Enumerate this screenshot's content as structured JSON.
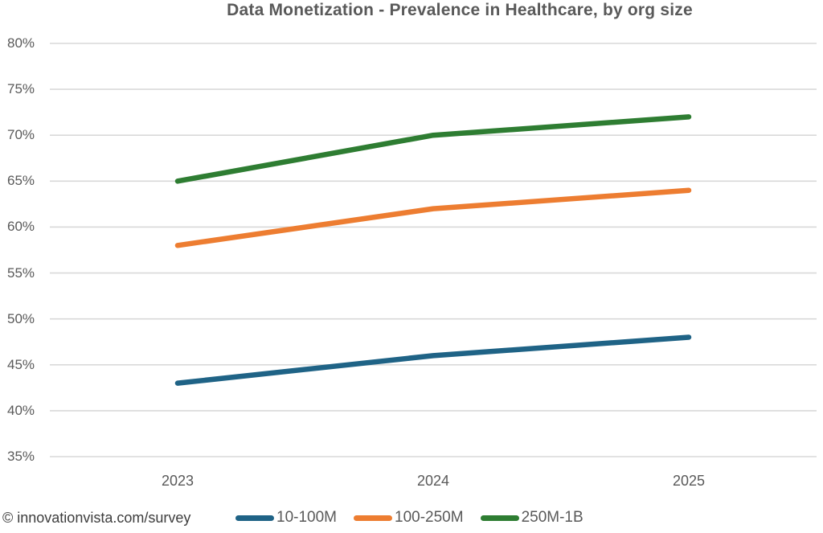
{
  "title": "Data Monetization - Prevalence in Healthcare, by org size",
  "footer": {
    "attribution": "© innovationvista.com/survey"
  },
  "colors": {
    "grid": "#d9d9d9",
    "axis_text": "#595959",
    "title_text": "#595959",
    "attribution_text": "#3d3d3d",
    "series_blue": "#1f6386",
    "series_orange": "#ed7d31",
    "series_green": "#2e7d32"
  },
  "chart_data": {
    "type": "line",
    "title": "Data Monetization - Prevalence in Healthcare, by org size",
    "categories": [
      "2023",
      "2024",
      "2025"
    ],
    "series": [
      {
        "name": "10-100M",
        "color": "#1f6386",
        "values": [
          43,
          46,
          48
        ]
      },
      {
        "name": "100-250M",
        "color": "#ed7d31",
        "values": [
          58,
          62,
          64
        ]
      },
      {
        "name": "250M-1B",
        "color": "#2e7d32",
        "values": [
          65,
          70,
          72
        ]
      }
    ],
    "xlabel": "",
    "ylabel": "",
    "ylim": [
      35,
      80
    ],
    "ytick_step": 5,
    "ytick_suffix": "%",
    "grid": "horizontal",
    "legend_position": "bottom"
  }
}
